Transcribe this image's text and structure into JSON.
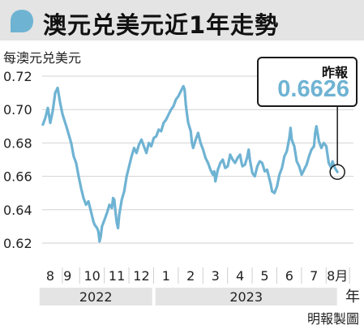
{
  "title": "澳元兑美元近1年走勢",
  "unit_label": "每澳元兑美元",
  "callout": {
    "label": "昨報",
    "value": "0.6626"
  },
  "year_suffix": "年",
  "source": "明報製圖",
  "colors": {
    "line": "#6fb3d3",
    "title_bg": "#e4e4e4",
    "icon": "#6fb3d3",
    "year_bar": "#e4e4e4"
  },
  "chart_data": {
    "type": "line",
    "title": "澳元兑美元近1年走勢",
    "ylabel": "每澳元兑美元",
    "ylim": [
      0.61,
      0.725
    ],
    "yticks": [
      0.62,
      0.64,
      0.66,
      0.68,
      0.7,
      0.72
    ],
    "ytick_labels": [
      "0.62",
      "0.64",
      "0.66",
      "0.68",
      "0.70",
      "0.72"
    ],
    "x_ticks": [
      {
        "label": "8",
        "x": 0.3
      },
      {
        "label": "9",
        "x": 1
      },
      {
        "label": "10",
        "x": 2
      },
      {
        "label": "11",
        "x": 3
      },
      {
        "label": "12",
        "x": 4
      },
      {
        "label": "1",
        "x": 5
      },
      {
        "label": "2",
        "x": 6
      },
      {
        "label": "3",
        "x": 7
      },
      {
        "label": "4",
        "x": 8
      },
      {
        "label": "5",
        "x": 9
      },
      {
        "label": "6",
        "x": 10
      },
      {
        "label": "7",
        "x": 11
      },
      {
        "label": "8月",
        "x": 11.95
      }
    ],
    "years": [
      {
        "label": "2022",
        "from": -0.2,
        "to": 4.5
      },
      {
        "label": "2023",
        "from": 4.5,
        "to": 12.0
      }
    ],
    "series": [
      {
        "values": [
          [
            0,
            0.691
          ],
          [
            0.1,
            0.695
          ],
          [
            0.2,
            0.701
          ],
          [
            0.3,
            0.692
          ],
          [
            0.4,
            0.699
          ],
          [
            0.5,
            0.71
          ],
          [
            0.6,
            0.713
          ],
          [
            0.7,
            0.704
          ],
          [
            0.8,
            0.697
          ],
          [
            0.95,
            0.69
          ],
          [
            1.05,
            0.685
          ],
          [
            1.15,
            0.68
          ],
          [
            1.25,
            0.672
          ],
          [
            1.35,
            0.668
          ],
          [
            1.45,
            0.66
          ],
          [
            1.55,
            0.653
          ],
          [
            1.65,
            0.647
          ],
          [
            1.75,
            0.643
          ],
          [
            1.85,
            0.645
          ],
          [
            1.95,
            0.639
          ],
          [
            2.05,
            0.633
          ],
          [
            2.1,
            0.631
          ],
          [
            2.2,
            0.629
          ],
          [
            2.25,
            0.627
          ],
          [
            2.3,
            0.621
          ],
          [
            2.35,
            0.624
          ],
          [
            2.4,
            0.63
          ],
          [
            2.5,
            0.634
          ],
          [
            2.6,
            0.638
          ],
          [
            2.7,
            0.643
          ],
          [
            2.8,
            0.641
          ],
          [
            2.85,
            0.647
          ],
          [
            2.9,
            0.646
          ],
          [
            2.95,
            0.638
          ],
          [
            3.0,
            0.632
          ],
          [
            3.05,
            0.629
          ],
          [
            3.1,
            0.637
          ],
          [
            3.2,
            0.646
          ],
          [
            3.3,
            0.651
          ],
          [
            3.4,
            0.66
          ],
          [
            3.5,
            0.666
          ],
          [
            3.6,
            0.672
          ],
          [
            3.7,
            0.677
          ],
          [
            3.8,
            0.674
          ],
          [
            3.9,
            0.679
          ],
          [
            4.0,
            0.682
          ],
          [
            4.1,
            0.678
          ],
          [
            4.2,
            0.674
          ],
          [
            4.3,
            0.68
          ],
          [
            4.4,
            0.678
          ],
          [
            4.5,
            0.683
          ],
          [
            4.6,
            0.684
          ],
          [
            4.7,
            0.688
          ],
          [
            4.8,
            0.687
          ],
          [
            4.9,
            0.692
          ],
          [
            5.0,
            0.694
          ],
          [
            5.1,
            0.697
          ],
          [
            5.2,
            0.7
          ],
          [
            5.3,
            0.702
          ],
          [
            5.4,
            0.706
          ],
          [
            5.5,
            0.708
          ],
          [
            5.6,
            0.711
          ],
          [
            5.7,
            0.714
          ],
          [
            5.75,
            0.712
          ],
          [
            5.8,
            0.703
          ],
          [
            5.85,
            0.697
          ],
          [
            5.9,
            0.692
          ],
          [
            6.0,
            0.687
          ],
          [
            6.05,
            0.68
          ],
          [
            6.1,
            0.677
          ],
          [
            6.2,
            0.682
          ],
          [
            6.3,
            0.686
          ],
          [
            6.4,
            0.68
          ],
          [
            6.5,
            0.676
          ],
          [
            6.6,
            0.671
          ],
          [
            6.7,
            0.668
          ],
          [
            6.8,
            0.664
          ],
          [
            6.9,
            0.661
          ],
          [
            6.95,
            0.663
          ],
          [
            7.0,
            0.657
          ],
          [
            7.1,
            0.664
          ],
          [
            7.2,
            0.668
          ],
          [
            7.3,
            0.67
          ],
          [
            7.4,
            0.665
          ],
          [
            7.5,
            0.666
          ],
          [
            7.6,
            0.673
          ],
          [
            7.7,
            0.67
          ],
          [
            7.8,
            0.668
          ],
          [
            7.9,
            0.671
          ],
          [
            8.0,
            0.673
          ],
          [
            8.05,
            0.669
          ],
          [
            8.1,
            0.666
          ],
          [
            8.2,
            0.667
          ],
          [
            8.3,
            0.672
          ],
          [
            8.35,
            0.676
          ],
          [
            8.4,
            0.67
          ],
          [
            8.5,
            0.662
          ],
          [
            8.6,
            0.66
          ],
          [
            8.7,
            0.666
          ],
          [
            8.8,
            0.669
          ],
          [
            8.9,
            0.668
          ],
          [
            9.0,
            0.663
          ],
          [
            9.1,
            0.664
          ],
          [
            9.2,
            0.658
          ],
          [
            9.25,
            0.655
          ],
          [
            9.3,
            0.651
          ],
          [
            9.4,
            0.65
          ],
          [
            9.5,
            0.654
          ],
          [
            9.6,
            0.661
          ],
          [
            9.7,
            0.665
          ],
          [
            9.8,
            0.672
          ],
          [
            9.9,
            0.675
          ],
          [
            10.0,
            0.683
          ],
          [
            10.05,
            0.689
          ],
          [
            10.1,
            0.682
          ],
          [
            10.2,
            0.678
          ],
          [
            10.3,
            0.669
          ],
          [
            10.4,
            0.666
          ],
          [
            10.5,
            0.661
          ],
          [
            10.6,
            0.664
          ],
          [
            10.7,
            0.667
          ],
          [
            10.8,
            0.672
          ],
          [
            10.9,
            0.676
          ],
          [
            11.0,
            0.678
          ],
          [
            11.05,
            0.686
          ],
          [
            11.1,
            0.69
          ],
          [
            11.2,
            0.681
          ],
          [
            11.3,
            0.677
          ],
          [
            11.4,
            0.68
          ],
          [
            11.5,
            0.678
          ],
          [
            11.6,
            0.668
          ],
          [
            11.7,
            0.665
          ],
          [
            11.75,
            0.669
          ],
          [
            11.85,
            0.665
          ],
          [
            11.95,
            0.6626
          ]
        ]
      }
    ]
  }
}
